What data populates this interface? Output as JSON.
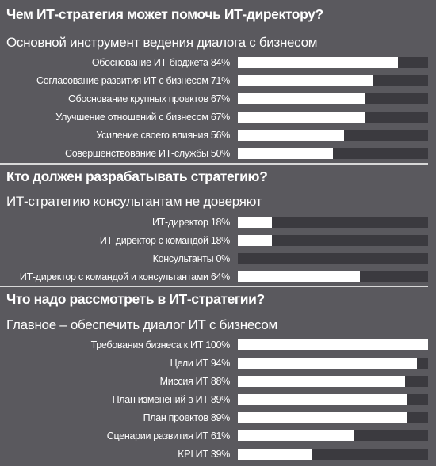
{
  "colors": {
    "background": "#5a595e",
    "track": "#3b3a3f",
    "fill": "#ffffff",
    "rule": "#d8d8d8"
  },
  "chart_data": [
    {
      "type": "bar",
      "title": "Чем ИТ-стратегия может помочь ИТ-директору?",
      "subtitle": "Основной инструмент ведения диалога с бизнесом",
      "orientation": "horizontal",
      "unit": "%",
      "xlim": [
        0,
        100
      ],
      "categories": [
        "Обоснование ИТ-бюджета 84%",
        "Согласование развития ИТ с бизнесом 71%",
        "Обоснование крупных проектов 67%",
        "Улучшение отношений с бизнесом 67%",
        "Усиление своего влияния 56%",
        "Совершенствование ИТ-службы 50%"
      ],
      "values": [
        84,
        71,
        67,
        67,
        56,
        50
      ]
    },
    {
      "type": "bar",
      "title": "Кто должен разрабатывать стратегию?",
      "subtitle": "ИТ-стратегию консультантам не доверяют",
      "orientation": "horizontal",
      "unit": "%",
      "xlim": [
        0,
        100
      ],
      "categories": [
        "ИТ-директор 18%",
        "ИТ-директор с командой 18%",
        "Консультанты 0%",
        "ИТ-директор с командой и консультантами 64%"
      ],
      "values": [
        18,
        18,
        0,
        64
      ]
    },
    {
      "type": "bar",
      "title": "Что надо рассмотреть в ИТ-стратегии?",
      "subtitle": "Главное – обеспечить диалог ИТ с бизнесом",
      "orientation": "horizontal",
      "unit": "%",
      "xlim": [
        0,
        100
      ],
      "categories": [
        "Требования бизнеса к ИТ 100%",
        "Цели ИТ 94%",
        "Миссия ИТ 88%",
        "План изменений в ИТ 89%",
        "План проектов 89%",
        "Сценарии развития ИТ 61%",
        "KPI ИТ 39%"
      ],
      "values": [
        100,
        94,
        88,
        89,
        89,
        61,
        39
      ]
    }
  ]
}
